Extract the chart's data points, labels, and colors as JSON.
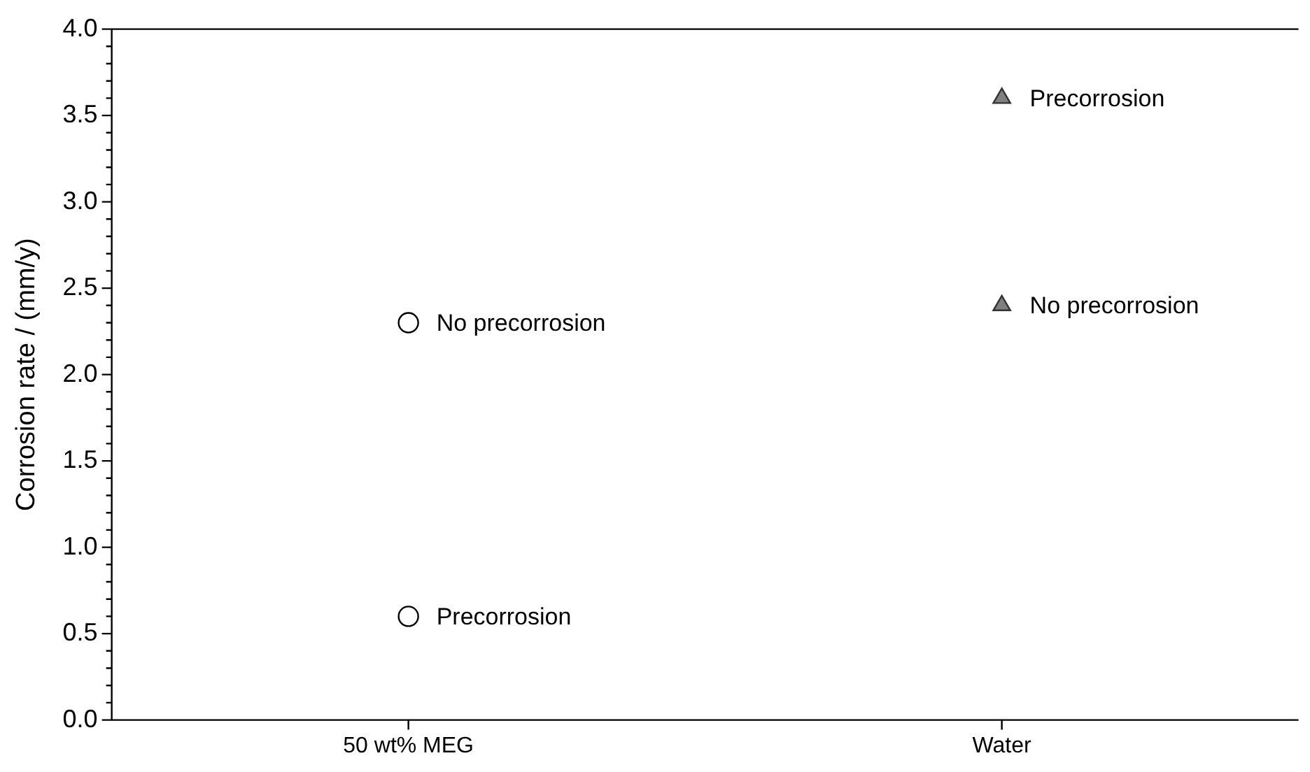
{
  "chart_data": {
    "type": "scatter",
    "ylabel": "Corrosion rate / (mm/y)",
    "categories": [
      "50 wt% MEG",
      "Water"
    ],
    "series": [
      {
        "type": "scatter",
        "color": "#000000",
        "marker": "circle",
        "x": [
          "50 wt% MEG",
          "50 wt% MEG"
        ],
        "values": [
          2.3,
          0.6
        ]
      },
      {
        "type": "scatter",
        "color": "#808080",
        "marker": "triangle",
        "x": [
          "Water",
          "Water"
        ],
        "values": [
          3.6,
          2.4
        ]
      }
    ],
    "annotations": [
      {
        "text": "No precorrosion",
        "x": "50 wt% MEG",
        "y": 2.3
      },
      {
        "text": "Precorrosion",
        "x": "50 wt% MEG",
        "y": 0.6
      },
      {
        "text": "Precorrosion",
        "x": "Water",
        "y": 3.6
      },
      {
        "text": "No precorrosion",
        "x": "Water",
        "y": 2.4
      }
    ],
    "ylim": [
      0,
      4
    ],
    "yticks": [
      {
        "value": 0,
        "label": "0.0"
      },
      {
        "value": 0.1,
        "label": null
      },
      {
        "value": 0.2,
        "label": null
      },
      {
        "value": 0.3,
        "label": null
      },
      {
        "value": 0.4,
        "label": null
      },
      {
        "value": 0.5,
        "label": "0.5"
      },
      {
        "value": 0.6,
        "label": null
      },
      {
        "value": 0.7,
        "label": null
      },
      {
        "value": 0.8,
        "label": null
      },
      {
        "value": 0.9,
        "label": null
      },
      {
        "value": 1,
        "label": "1.0"
      },
      {
        "value": 1.1,
        "label": null
      },
      {
        "value": 1.2,
        "label": null
      },
      {
        "value": 1.3,
        "label": null
      },
      {
        "value": 1.4,
        "label": null
      },
      {
        "value": 1.5,
        "label": "1.5"
      },
      {
        "value": 1.6,
        "label": null
      },
      {
        "value": 1.7,
        "label": null
      },
      {
        "value": 1.8,
        "label": null
      },
      {
        "value": 1.9,
        "label": null
      },
      {
        "value": 2,
        "label": "2.0"
      },
      {
        "value": 2.1,
        "label": null
      },
      {
        "value": 2.2,
        "label": null
      },
      {
        "value": 2.3,
        "label": null
      },
      {
        "value": 2.4,
        "label": null
      },
      {
        "value": 2.5,
        "label": "2.5"
      },
      {
        "value": 2.6,
        "label": null
      },
      {
        "value": 2.7,
        "label": null
      },
      {
        "value": 2.8,
        "label": null
      },
      {
        "value": 2.9,
        "label": null
      },
      {
        "value": 3,
        "label": "3.0"
      },
      {
        "value": 3.1,
        "label": null
      },
      {
        "value": 3.2,
        "label": null
      },
      {
        "value": 3.3,
        "label": null
      },
      {
        "value": 3.4,
        "label": null
      },
      {
        "value": 3.5,
        "label": "3.5"
      },
      {
        "value": 3.6,
        "label": null
      },
      {
        "value": 3.7,
        "label": null
      },
      {
        "value": 3.8,
        "label": null
      },
      {
        "value": 3.9,
        "label": null
      },
      {
        "value": 4,
        "label": "4.0"
      }
    ],
    "grid": false,
    "legend": false
  }
}
